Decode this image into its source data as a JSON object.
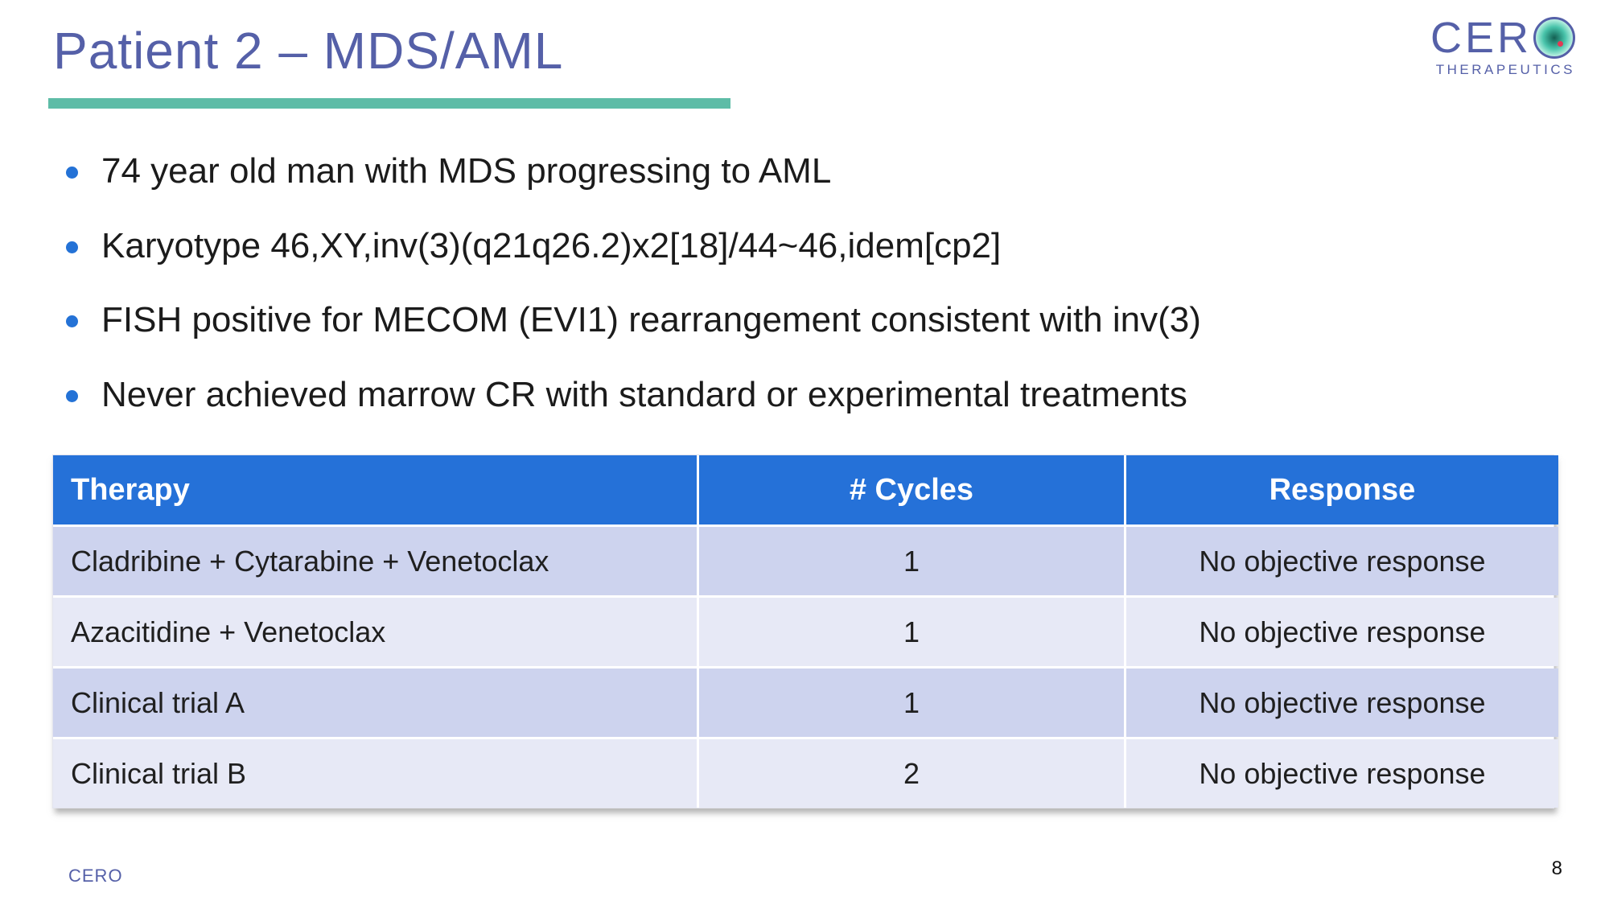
{
  "slide": {
    "title": "Patient 2 – MDS/AML",
    "footer_brand": "CERO",
    "page_number": "8"
  },
  "logo": {
    "wordmark": "CER",
    "subtitle": "THERAPEUTICS"
  },
  "bullets": [
    {
      "text": "74 year old man with MDS progressing to AML"
    },
    {
      "text": "Karyotype 46,XY,inv(3)(q21q26.2)x2[18]/44~46,idem[cp2]"
    },
    {
      "text": "FISH positive for MECOM (EVI1) rearrangement consistent with inv(3)"
    },
    {
      "text": "Never achieved marrow CR with standard or experimental treatments"
    }
  ],
  "table": {
    "headers": [
      "Therapy",
      "# Cycles",
      "Response"
    ],
    "rows": [
      [
        "Cladribine + Cytarabine + Venetoclax",
        "1",
        "No objective response"
      ],
      [
        "Azacitidine + Venetoclax",
        "1",
        "No objective response"
      ],
      [
        "Clinical trial A",
        "1",
        "No objective response"
      ],
      [
        "Clinical trial B",
        "2",
        "No objective response"
      ]
    ]
  },
  "colors": {
    "title_text": "#5560a8",
    "accent_teal": "#5ebca7",
    "table_header_blue": "#2571d8",
    "row_dark": "#cdd3ee",
    "row_light": "#e7e9f6",
    "bullet_dot_blue": "#2472d6",
    "logo_red_dot": "#e23a55"
  }
}
